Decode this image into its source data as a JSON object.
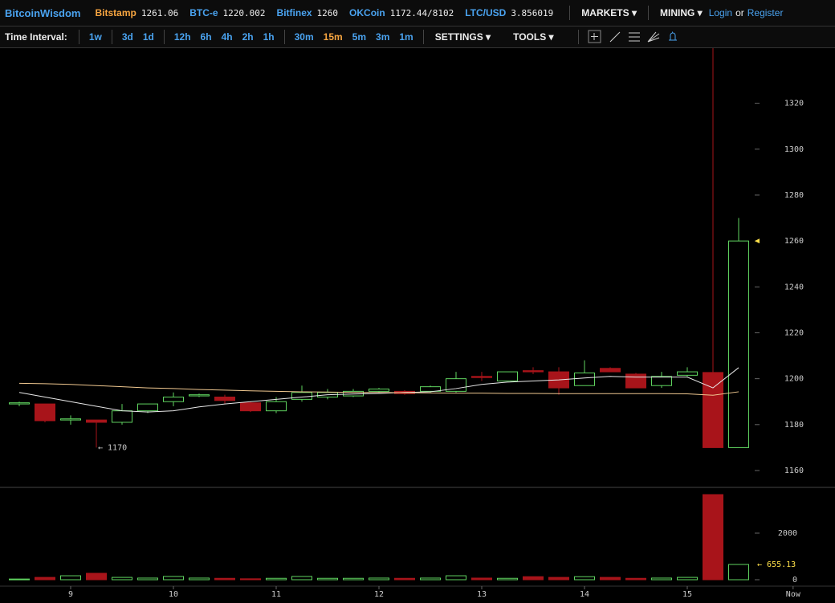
{
  "header": {
    "brand": "BitcoinWisdom",
    "tickers": [
      {
        "name": "Bitstamp",
        "price": "1261.06",
        "color": "#f7a540"
      },
      {
        "name": "BTC-e",
        "price": "1220.002",
        "color": "#4aa3f0"
      },
      {
        "name": "Bitfinex",
        "price": "1260",
        "color": "#4aa3f0"
      },
      {
        "name": "OKCoin",
        "price": "1172.44/8102",
        "color": "#4aa3f0"
      },
      {
        "name": "LTC/USD",
        "price": "3.856019",
        "color": "#4aa3f0"
      }
    ],
    "menus": [
      "MARKETS",
      "MINING"
    ],
    "login": "Login",
    "or": "or",
    "register": "Register"
  },
  "toolbar": {
    "label": "Time Interval:",
    "intervals": [
      [
        "1w"
      ],
      [
        "3d",
        "1d"
      ],
      [
        "12h",
        "6h",
        "4h",
        "2h",
        "1h"
      ],
      [
        "30m",
        "15m",
        "5m",
        "3m",
        "1m"
      ]
    ],
    "active": "15m",
    "settings": "SETTINGS",
    "tools": "TOOLS"
  },
  "chart_data": [
    {
      "type": "candlestick",
      "x": [
        8.5,
        8.75,
        9,
        9.25,
        9.5,
        9.75,
        10,
        10.25,
        10.5,
        10.75,
        11,
        11.25,
        11.5,
        11.75,
        12,
        12.25,
        12.5,
        12.75,
        13,
        13.25,
        13.5,
        13.75,
        14,
        14.25,
        14.5,
        14.75,
        15,
        15.25,
        15.5
      ],
      "open": [
        1189,
        1189,
        1182,
        1182,
        1181,
        1186,
        1190,
        1192.5,
        1192,
        1189.5,
        1186,
        1191,
        1192,
        1192.5,
        1194.5,
        1194.5,
        1194.5,
        1194.5,
        1201,
        1199,
        1203.5,
        1203,
        1197,
        1204.5,
        1202,
        1197,
        1201.5,
        1202.7,
        1170
      ],
      "high": [
        1190,
        1189,
        1184,
        1182,
        1189,
        1189,
        1194,
        1193.5,
        1193,
        1190,
        1192,
        1197,
        1195.5,
        1195.5,
        1196,
        1195,
        1197,
        1203,
        1203,
        1203,
        1205,
        1205,
        1208,
        1205,
        1202.5,
        1203,
        1205,
        1344,
        1270
      ],
      "low": [
        1188,
        1181,
        1180,
        1170,
        1180,
        1185,
        1188,
        1192,
        1189,
        1185.5,
        1185,
        1190,
        1191,
        1192,
        1194,
        1193,
        1194,
        1194,
        1199,
        1199,
        1202,
        1193,
        1197,
        1203,
        1196,
        1196,
        1201,
        1170.5,
        1170.5
      ],
      "close": [
        1189.5,
        1181.7,
        1182.5,
        1181,
        1186,
        1189,
        1192,
        1193,
        1190.5,
        1186,
        1190,
        1194,
        1194,
        1194.5,
        1195.5,
        1193.5,
        1196.5,
        1200,
        1200.5,
        1203,
        1203,
        1196,
        1202.5,
        1203,
        1196,
        1201,
        1203,
        1170,
        1260
      ],
      "up_color": "#5fd35f",
      "down_color": "#a8141a",
      "low_label": "← 1170",
      "series": [
        {
          "color": "#e8e8e8",
          "values": [
            1194,
            1192,
            1190,
            1188,
            1186,
            1185.5,
            1186,
            1187.7,
            1189,
            1190,
            1191,
            1192,
            1193,
            1193.3,
            1193.6,
            1194,
            1194.3,
            1195.7,
            1197.5,
            1198.5,
            1199,
            1199.5,
            1200.3,
            1201,
            1200.7,
            1200.7,
            1200.7,
            1196,
            1204.8
          ]
        },
        {
          "color": "#f0c890",
          "values": [
            1198,
            1197.8,
            1197.5,
            1197,
            1196.5,
            1196,
            1195.7,
            1195.3,
            1195,
            1194.7,
            1194.5,
            1194.3,
            1194.2,
            1194,
            1194,
            1193.9,
            1193.8,
            1193.7,
            1193.7,
            1193.6,
            1193.6,
            1193.5,
            1193.5,
            1193.5,
            1193.5,
            1193.5,
            1193.4,
            1192.8,
            1194.3
          ]
        }
      ],
      "xlim": [
        8.3125,
        16.4375
      ],
      "ylim": [
        1153,
        1344
      ],
      "yticks": [
        1160,
        1180,
        1200,
        1220,
        1240,
        1260,
        1280,
        1300,
        1320
      ]
    },
    {
      "type": "bar",
      "x": [
        8.5,
        8.75,
        9,
        9.25,
        9.5,
        9.75,
        10,
        10.25,
        10.5,
        10.75,
        11,
        11.25,
        11.5,
        11.75,
        12,
        12.25,
        12.5,
        12.75,
        13,
        13.25,
        13.5,
        13.75,
        14,
        14.25,
        14.5,
        14.75,
        15,
        15.25,
        15.5
      ],
      "values": [
        30,
        100,
        170,
        275,
        100,
        70,
        140,
        70,
        60,
        40,
        60,
        140,
        60,
        60,
        70,
        60,
        70,
        170,
        70,
        60,
        130,
        100,
        130,
        100,
        60,
        70,
        100,
        3655,
        655.13
      ],
      "value_labels": [
        null,
        null,
        null,
        null,
        null,
        null,
        null,
        null,
        null,
        null,
        null,
        null,
        null,
        null,
        null,
        null,
        null,
        null,
        null,
        null,
        null,
        null,
        null,
        null,
        null,
        null,
        null,
        null,
        "← 655.13"
      ],
      "xlim": [
        8.3125,
        16.4375
      ],
      "ylim": [
        -276,
        3931
      ],
      "yticks": [
        0,
        2000
      ],
      "xticks": [
        9,
        10,
        11,
        12,
        13,
        14,
        15,
        {
          "value": 16.03,
          "label": "Now"
        }
      ]
    }
  ]
}
